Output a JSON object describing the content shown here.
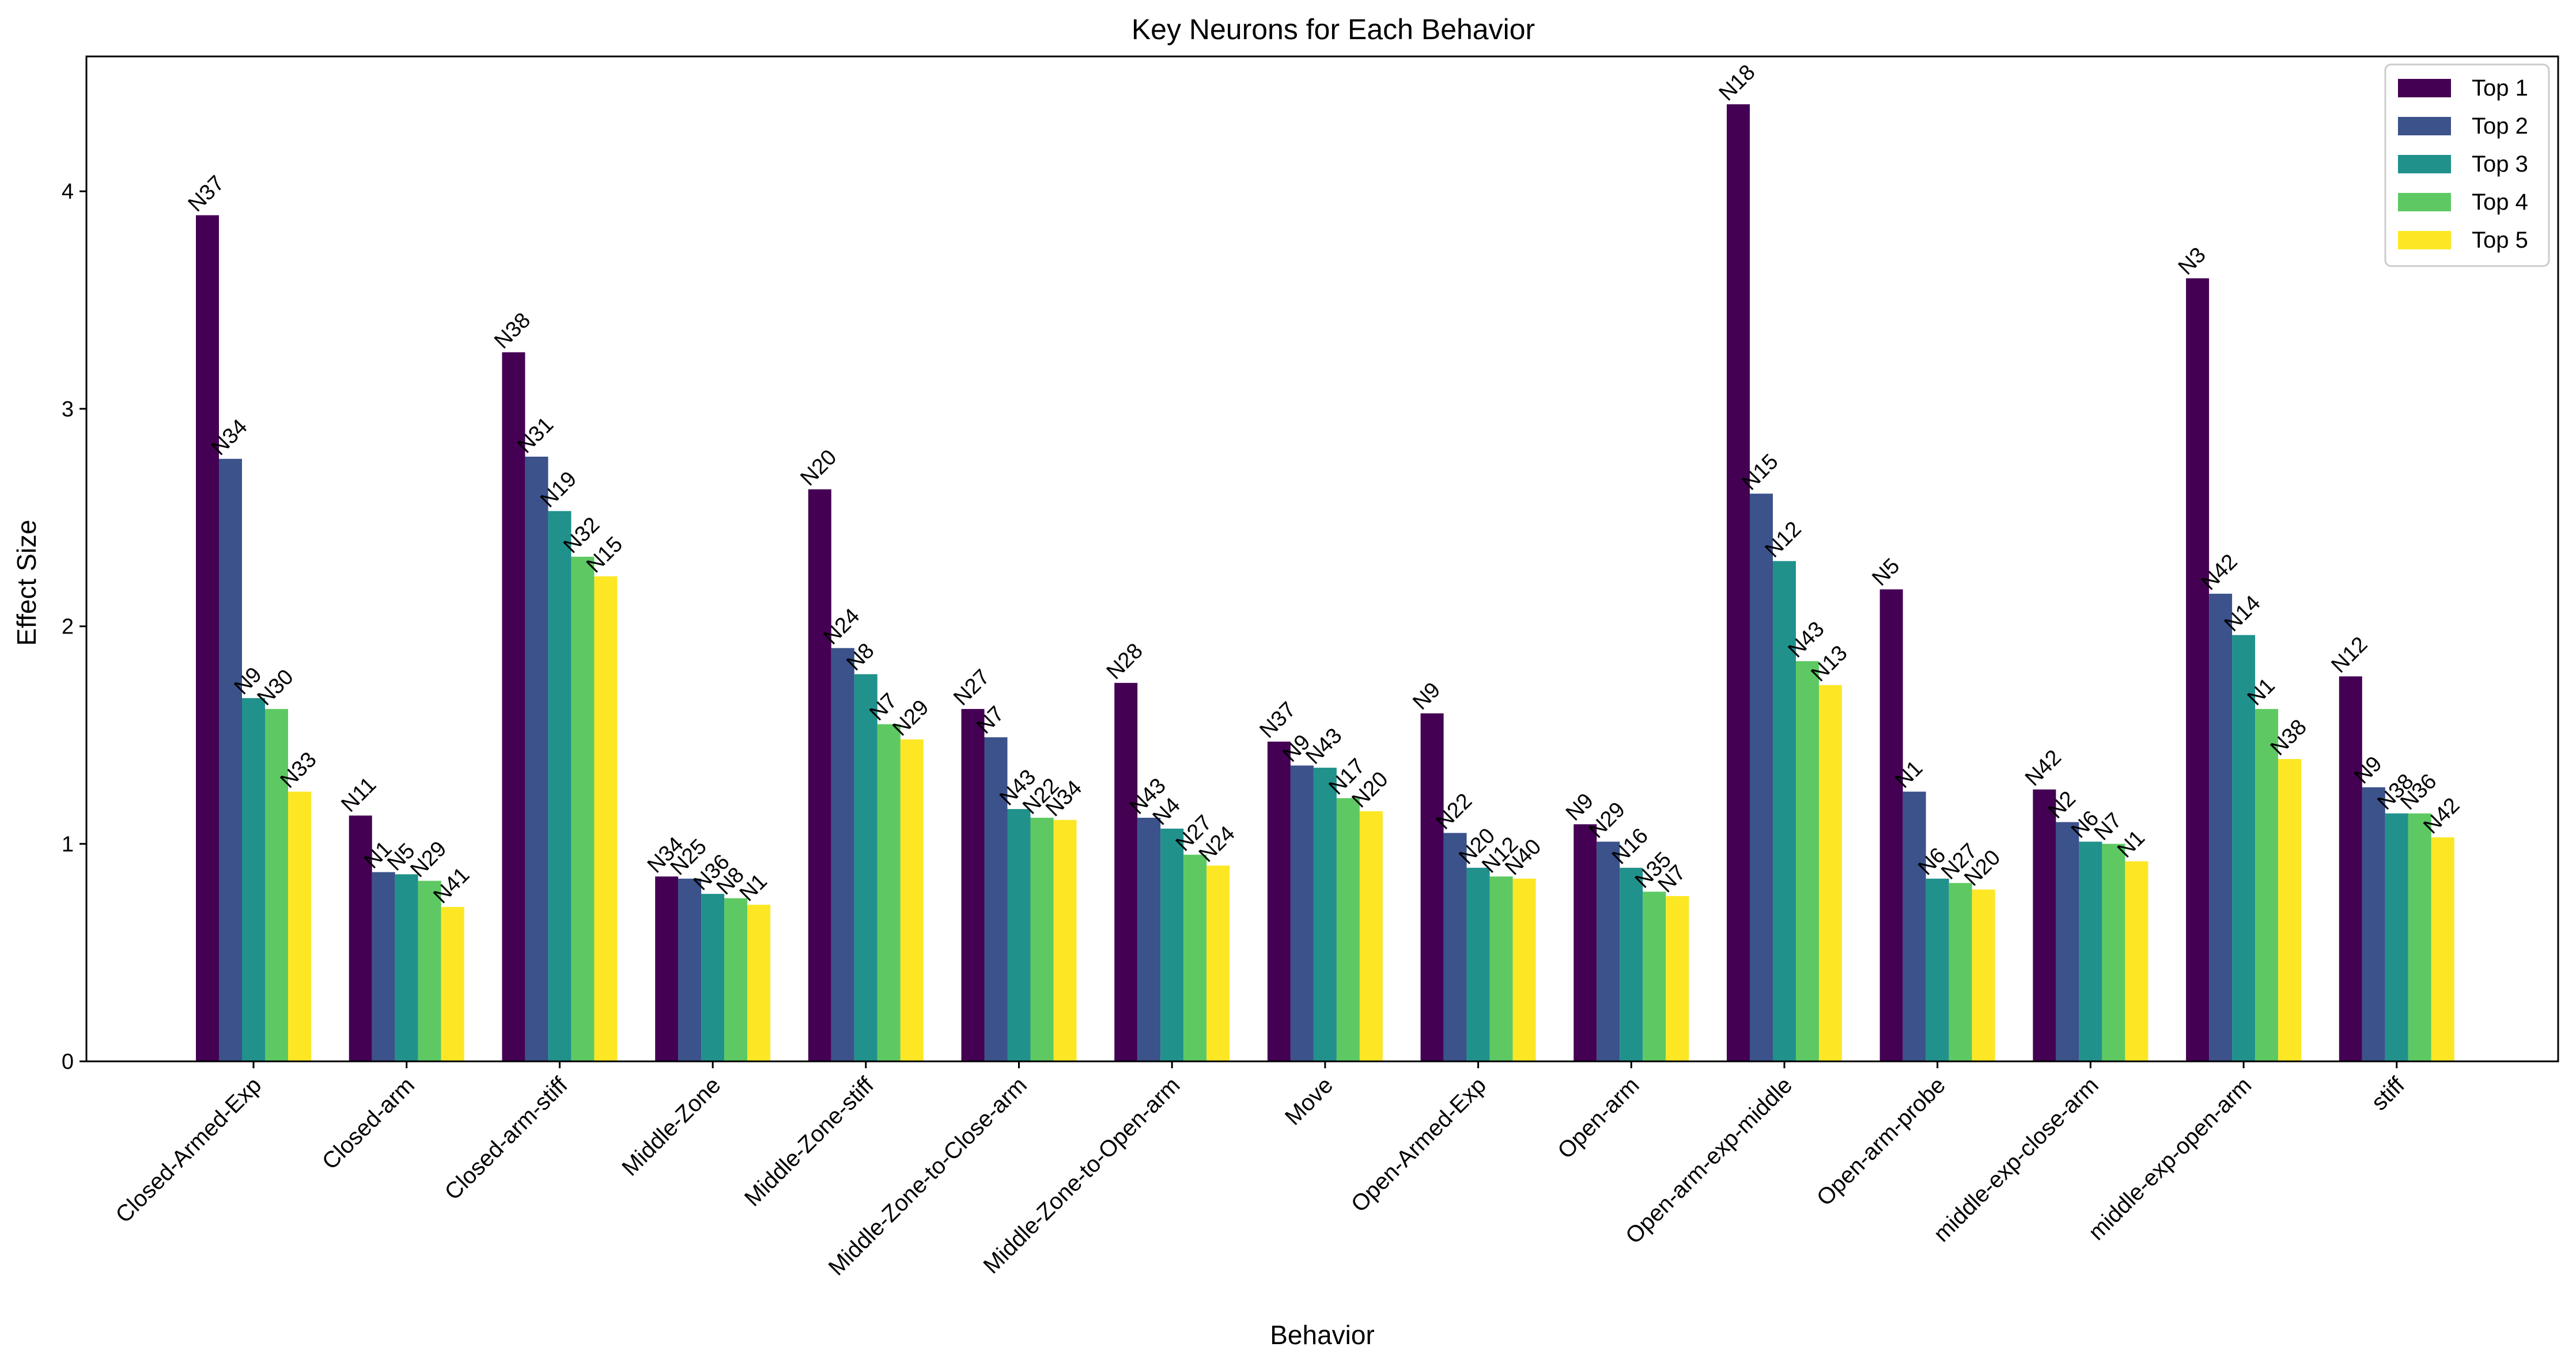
{
  "chart_data": {
    "type": "bar",
    "title": "Key Neurons for Each Behavior",
    "xlabel": "Behavior",
    "ylabel": "Effect Size",
    "ylim": [
      0,
      4.62
    ],
    "yticks": [
      0,
      1,
      2,
      3,
      4
    ],
    "grid": false,
    "legend_position": "top-right",
    "colors": [
      "#440154",
      "#3b528b",
      "#21918c",
      "#5ec962",
      "#fde725"
    ],
    "categories": [
      "Closed-Armed-Exp",
      "Closed-arm",
      "Closed-arm-stiff",
      "Middle-Zone",
      "Middle-Zone-stiff",
      "Middle-Zone-to-Close-arm",
      "Middle-Zone-to-Open-arm",
      "Move",
      "Open-Armed-Exp",
      "Open-arm",
      "Open-arm-exp-middle",
      "Open-arm-probe",
      "middle-exp-close-arm",
      "middle-exp-open-arm",
      "stiff"
    ],
    "series": [
      {
        "name": "Top 1",
        "values": [
          3.89,
          1.13,
          3.26,
          0.85,
          2.63,
          1.62,
          1.74,
          1.47,
          1.6,
          1.09,
          4.4,
          2.17,
          1.25,
          3.6,
          1.77
        ],
        "labels": [
          "N37",
          "N11",
          "N38",
          "N34",
          "N20",
          "N27",
          "N28",
          "N37",
          "N9",
          "N9",
          "N18",
          "N5",
          "N42",
          "N3",
          "N12"
        ]
      },
      {
        "name": "Top 2",
        "values": [
          2.77,
          0.87,
          2.78,
          0.84,
          1.9,
          1.49,
          1.12,
          1.36,
          1.05,
          1.01,
          2.61,
          1.24,
          1.1,
          2.15,
          1.26
        ],
        "labels": [
          "N34",
          "N1",
          "N31",
          "N25",
          "N24",
          "N7",
          "N43",
          "N9",
          "N22",
          "N29",
          "N15",
          "N1",
          "N2",
          "N42",
          "N9"
        ]
      },
      {
        "name": "Top 3",
        "values": [
          1.67,
          0.86,
          2.53,
          0.77,
          1.78,
          1.16,
          1.07,
          1.35,
          0.89,
          0.89,
          2.3,
          0.84,
          1.01,
          1.96,
          1.14
        ],
        "labels": [
          "N9",
          "N5",
          "N19",
          "N36",
          "N8",
          "N43",
          "N4",
          "N43",
          "N20",
          "N16",
          "N12",
          "N6",
          "N6",
          "N14",
          "N38"
        ]
      },
      {
        "name": "Top 4",
        "values": [
          1.62,
          0.83,
          2.32,
          0.75,
          1.55,
          1.12,
          0.95,
          1.21,
          0.85,
          0.78,
          1.84,
          0.82,
          1.0,
          1.62,
          1.14
        ],
        "labels": [
          "N30",
          "N29",
          "N32",
          "N8",
          "N7",
          "N22",
          "N27",
          "N17",
          "N12",
          "N35",
          "N43",
          "N27",
          "N7",
          "N1",
          "N36"
        ]
      },
      {
        "name": "Top 5",
        "values": [
          1.24,
          0.71,
          2.23,
          0.72,
          1.48,
          1.11,
          0.9,
          1.15,
          0.84,
          0.76,
          1.73,
          0.79,
          0.92,
          1.39,
          1.03
        ],
        "labels": [
          "N33",
          "N41",
          "N15",
          "N1",
          "N29",
          "N34",
          "N24",
          "N20",
          "N40",
          "N7",
          "N13",
          "N20",
          "N1",
          "N38",
          "N42"
        ]
      }
    ]
  }
}
